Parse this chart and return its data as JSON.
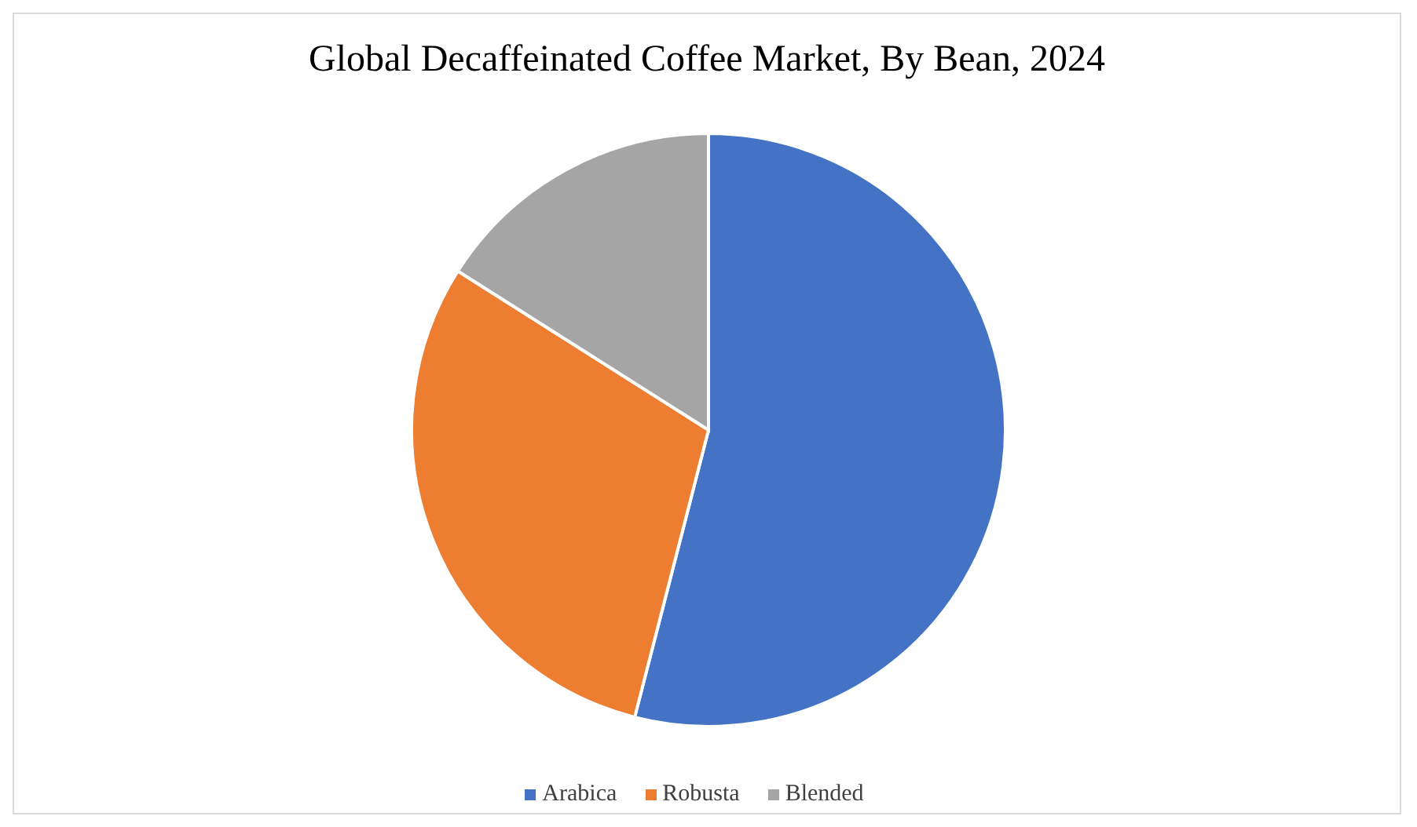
{
  "chart_data": {
    "type": "pie",
    "title": "Global Decaffeinated Coffee Market, By Bean, 2024",
    "categories": [
      "Arabica",
      "Robusta",
      "Blended"
    ],
    "values": [
      54,
      30,
      16
    ],
    "colors": [
      "#4472c4",
      "#ed7d31",
      "#a5a5a5"
    ],
    "legend": "bottom"
  }
}
